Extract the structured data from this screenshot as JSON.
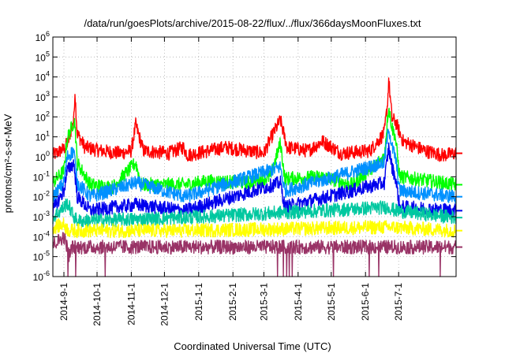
{
  "chart_data": {
    "type": "line",
    "title": "/data/run/goesPlots/archive/2015-08-22/flux/../flux/366daysMoonFluxes.txt",
    "xlabel": "Coordinated Universal Time (UTC)",
    "ylabel": "protons/cm²-s-sr-MeV",
    "ylog": true,
    "xlim": [
      "2014-08-22",
      "2015-08-22"
    ],
    "ylim": [
      1e-06,
      1000000.0
    ],
    "grid": true,
    "x_ticks": [
      "2014-9-1",
      "2014-10-1",
      "2014-11-1",
      "2014-12-1",
      "2015-1-1",
      "2015-2-1",
      "2015-3-1",
      "2015-4-1",
      "2015-5-1",
      "2015-6-1",
      "2015-7-1"
    ],
    "y_ticks": [
      {
        "base": "10",
        "exp": "-6"
      },
      {
        "base": "10",
        "exp": "-5"
      },
      {
        "base": "10",
        "exp": "-4"
      },
      {
        "base": "10",
        "exp": "-3"
      },
      {
        "base": "10",
        "exp": "-2"
      },
      {
        "base": "10",
        "exp": "-1"
      },
      {
        "base": "10",
        "exp": "0"
      },
      {
        "base": "10",
        "exp": "1"
      },
      {
        "base": "10",
        "exp": "2"
      },
      {
        "base": "10",
        "exp": "3"
      },
      {
        "base": "10",
        "exp": "4"
      },
      {
        "base": "10",
        "exp": "5"
      },
      {
        "base": "10",
        "exp": "6"
      }
    ],
    "series": [
      {
        "color": "#ff0000",
        "baseline": 1.5,
        "points": [
          [
            "2014-08-22",
            1.2
          ],
          [
            "2014-09-01",
            2.5
          ],
          [
            "2014-09-05",
            6
          ],
          [
            "2014-09-10",
            80
          ],
          [
            "2014-09-11",
            2000
          ],
          [
            "2014-09-13",
            15
          ],
          [
            "2014-09-20",
            3
          ],
          [
            "2014-10-05",
            2
          ],
          [
            "2014-10-22",
            1.5
          ],
          [
            "2014-11-01",
            2
          ],
          [
            "2014-11-05",
            40
          ],
          [
            "2014-11-12",
            2
          ],
          [
            "2014-12-05",
            1.5
          ],
          [
            "2014-12-18",
            3
          ],
          [
            "2014-12-22",
            1.2
          ],
          [
            "2015-01-10",
            2
          ],
          [
            "2015-01-25",
            3
          ],
          [
            "2015-02-15",
            2
          ],
          [
            "2015-03-01",
            1.5
          ],
          [
            "2015-03-07",
            8
          ],
          [
            "2015-03-16",
            70
          ],
          [
            "2015-03-22",
            3
          ],
          [
            "2015-04-10",
            2
          ],
          [
            "2015-04-23",
            6
          ],
          [
            "2015-05-10",
            1.5
          ],
          [
            "2015-06-05",
            2
          ],
          [
            "2015-06-18",
            15
          ],
          [
            "2015-06-21",
            500
          ],
          [
            "2015-06-22",
            8000
          ],
          [
            "2015-06-25",
            80
          ],
          [
            "2015-06-28",
            60
          ],
          [
            "2015-07-05",
            6
          ],
          [
            "2015-07-25",
            2
          ],
          [
            "2015-08-10",
            1.2
          ],
          [
            "2015-08-22",
            1.5
          ]
        ]
      },
      {
        "color": "#00ff00",
        "baseline": 0.04,
        "points": [
          [
            "2014-08-22",
            0.05
          ],
          [
            "2014-09-01",
            0.2
          ],
          [
            "2014-09-04",
            8
          ],
          [
            "2014-09-10",
            60
          ],
          [
            "2014-09-11",
            50
          ],
          [
            "2014-09-13",
            0.5
          ],
          [
            "2014-09-25",
            0.04
          ],
          [
            "2014-10-15",
            0.03
          ],
          [
            "2014-11-05",
            0.5
          ],
          [
            "2014-11-10",
            0.04
          ],
          [
            "2014-12-20",
            0.04
          ],
          [
            "2015-01-10",
            0.06
          ],
          [
            "2015-02-15",
            0.05
          ],
          [
            "2015-03-07",
            0.1
          ],
          [
            "2015-03-16",
            5
          ],
          [
            "2015-03-20",
            0.08
          ],
          [
            "2015-04-23",
            0.1
          ],
          [
            "2015-05-20",
            0.04
          ],
          [
            "2015-06-18",
            1
          ],
          [
            "2015-06-21",
            100
          ],
          [
            "2015-06-22",
            300
          ],
          [
            "2015-06-25",
            30
          ],
          [
            "2015-06-28",
            10
          ],
          [
            "2015-07-02",
            0.1
          ],
          [
            "2015-08-22",
            0.04
          ]
        ]
      },
      {
        "color": "#0090ff",
        "baseline": 0.01,
        "points": [
          [
            "2014-08-22",
            0.01
          ],
          [
            "2014-09-01",
            0.05
          ],
          [
            "2014-09-04",
            1
          ],
          [
            "2014-09-10",
            2
          ],
          [
            "2014-09-13",
            0.05
          ],
          [
            "2014-09-25",
            0.01
          ],
          [
            "2014-11-05",
            0.05
          ],
          [
            "2014-12-20",
            0.01
          ],
          [
            "2015-03-16",
            0.3
          ],
          [
            "2015-03-20",
            0.02
          ],
          [
            "2015-06-18",
            0.5
          ],
          [
            "2015-06-22",
            30
          ],
          [
            "2015-06-25",
            3
          ],
          [
            "2015-06-28",
            1
          ],
          [
            "2015-07-02",
            0.02
          ],
          [
            "2015-08-22",
            0.01
          ]
        ]
      },
      {
        "color": "#0000ee",
        "baseline": 0.002,
        "points": [
          [
            "2014-08-22",
            0.002
          ],
          [
            "2014-09-01",
            0.02
          ],
          [
            "2014-09-04",
            0.2
          ],
          [
            "2014-09-10",
            0.5
          ],
          [
            "2014-09-13",
            0.01
          ],
          [
            "2014-09-25",
            0.002
          ],
          [
            "2014-11-05",
            0.004
          ],
          [
            "2014-12-20",
            0.002
          ],
          [
            "2015-03-16",
            0.05
          ],
          [
            "2015-03-20",
            0.003
          ],
          [
            "2015-06-18",
            0.05
          ],
          [
            "2015-06-22",
            3
          ],
          [
            "2015-06-25",
            0.3
          ],
          [
            "2015-06-28",
            0.1
          ],
          [
            "2015-07-02",
            0.003
          ],
          [
            "2015-08-22",
            0.002
          ]
        ]
      },
      {
        "color": "#00c8a0",
        "baseline": 0.0009,
        "points": [
          [
            "2014-08-22",
            0.0009
          ],
          [
            "2014-09-01",
            0.003
          ],
          [
            "2014-09-04",
            0.005
          ],
          [
            "2014-09-10",
            0.001
          ],
          [
            "2014-09-13",
            0.0006
          ],
          [
            "2014-12-20",
            0.0009
          ],
          [
            "2015-06-22",
            0.003
          ],
          [
            "2015-06-28",
            0.002
          ],
          [
            "2015-08-22",
            0.0009
          ]
        ]
      },
      {
        "color": "#ffff00",
        "baseline": 0.0002,
        "points": [
          [
            "2014-08-22",
            0.0003
          ],
          [
            "2014-09-01",
            0.0004
          ],
          [
            "2014-09-05",
            0.0002
          ],
          [
            "2014-12-20",
            0.0002
          ],
          [
            "2015-06-22",
            0.0003
          ],
          [
            "2015-08-22",
            0.0002
          ]
        ]
      },
      {
        "color": "#993366",
        "baseline": 3e-05,
        "points": [
          [
            "2014-08-22",
            4e-05
          ],
          [
            "2014-09-01",
            0.0001
          ],
          [
            "2014-09-04",
            3e-05
          ],
          [
            "2014-09-06",
            1e-05
          ],
          [
            "2014-09-08",
            3e-05
          ],
          [
            "2014-12-20",
            3e-05
          ],
          [
            "2015-08-22",
            3e-05
          ]
        ]
      }
    ]
  }
}
